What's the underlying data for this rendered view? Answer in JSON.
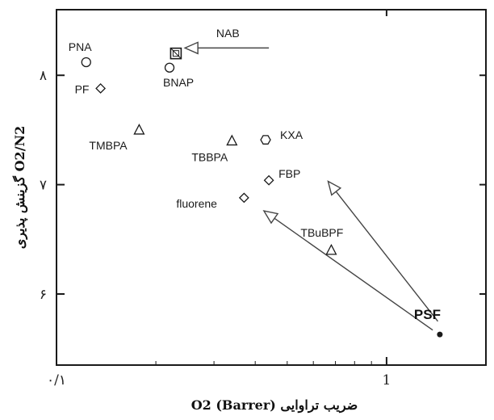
{
  "chart_data": {
    "type": "scatter",
    "title": "",
    "xlabel": "ضریب تراوایی O2 (Barrer)",
    "ylabel": "O2/N2 گزینش پذیری",
    "xscale": "log",
    "xlim": [
      0.1,
      2.0
    ],
    "ylim": [
      5.35,
      8.6
    ],
    "xticks": [
      {
        "value": 0.1,
        "label": "۰/۱"
      },
      {
        "value": 1,
        "label": "1"
      }
    ],
    "yticks": [
      {
        "value": 6,
        "label": "۶"
      },
      {
        "value": 7,
        "label": "۷"
      },
      {
        "value": 8,
        "label": "۸"
      }
    ],
    "grid": false,
    "legend": "none",
    "points": [
      {
        "label": "PNA",
        "marker": "circle",
        "x": 0.123,
        "y": 8.12
      },
      {
        "label": "PF",
        "marker": "diamond",
        "x": 0.136,
        "y": 7.88
      },
      {
        "label": "NAB",
        "marker": "boxed-square",
        "x": 0.23,
        "y": 8.2
      },
      {
        "label": "BNAP",
        "marker": "circle",
        "x": 0.22,
        "y": 8.07
      },
      {
        "label": "TMBPA",
        "marker": "triangle",
        "x": 0.178,
        "y": 7.5
      },
      {
        "label": "TBBPA",
        "marker": "triangle",
        "x": 0.34,
        "y": 7.4
      },
      {
        "label": "KXA",
        "marker": "hexagon",
        "x": 0.43,
        "y": 7.41
      },
      {
        "label": "FBP",
        "marker": "diamond",
        "x": 0.44,
        "y": 7.04
      },
      {
        "label": "fluorene",
        "marker": "diamond",
        "x": 0.37,
        "y": 6.88
      },
      {
        "label": "TBuBPF",
        "marker": "triangle",
        "x": 0.68,
        "y": 6.4
      },
      {
        "label": "PSF",
        "marker": "filled-dot",
        "x": 1.45,
        "y": 5.63
      }
    ],
    "arrows": [
      {
        "from": [
          1.38,
          5.67
        ],
        "to": [
          0.425,
          6.76
        ]
      },
      {
        "from": [
          1.43,
          5.75
        ],
        "to": [
          0.665,
          7.03
        ]
      },
      {
        "label_ref": "NAB",
        "from": [
          0.44,
          8.25
        ],
        "to": [
          0.245,
          8.25
        ]
      }
    ]
  },
  "colors": {
    "ink": "#1a1a1a",
    "arrow": "#444444",
    "background": "#ffffff"
  }
}
